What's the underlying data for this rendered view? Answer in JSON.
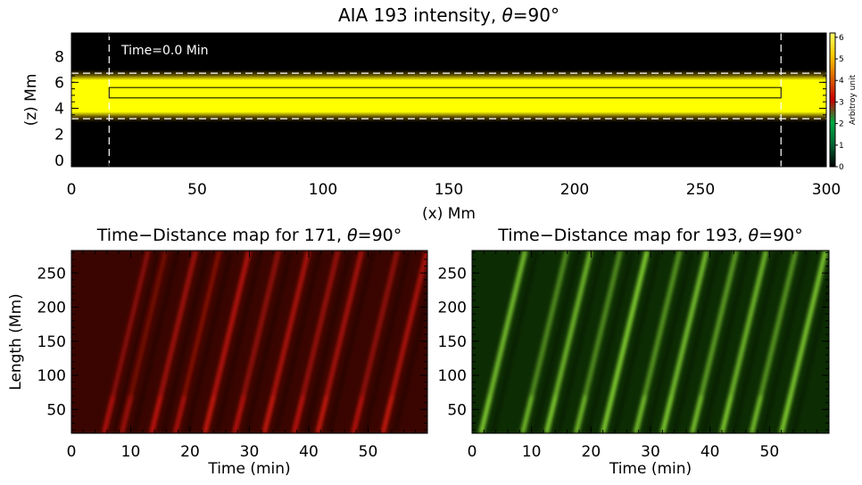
{
  "chart_data": [
    {
      "type": "heatmap",
      "title_prefix": "AIA 193 intensity, ",
      "title_theta": "θ",
      "title_value": "=90°",
      "xlabel": "(x) Mm",
      "ylabel": "(z) Mm",
      "xlim": [
        0,
        300
      ],
      "ylim": [
        -0.5,
        9.8
      ],
      "xticks": [
        0,
        50,
        100,
        150,
        200,
        250,
        300
      ],
      "yticks": [
        0,
        2,
        4,
        6,
        8
      ],
      "annotation": "Time=0.0 Min",
      "colorbar": {
        "label": "Arbitroy unit",
        "ticks": [
          0,
          1,
          2,
          3,
          4,
          5,
          6
        ],
        "range": [
          0,
          6.2
        ],
        "colors": [
          "#000000",
          "#006633",
          "#00aa44",
          "#cc0000",
          "#dd6600",
          "#ffcc00",
          "#ffff66"
        ]
      },
      "band": {
        "z_range": [
          3.2,
          6.7
        ],
        "core_z": [
          3.9,
          6.0
        ],
        "color": "#ffff00"
      },
      "dashed_lines": {
        "z": [
          3.2,
          6.7
        ],
        "x": [
          15,
          282
        ]
      },
      "box": {
        "x": [
          15,
          282
        ],
        "z": [
          4.8,
          5.6
        ]
      }
    },
    {
      "type": "heatmap",
      "title_prefix": "Time−Distance map for 171, ",
      "title_theta": "θ",
      "title_value": "=90°",
      "xlabel": "Time (min)",
      "ylabel": "Length (Mm)",
      "xlim": [
        0,
        60
      ],
      "ylim": [
        15,
        283
      ],
      "xticks": [
        0,
        10,
        20,
        30,
        40,
        50
      ],
      "yticks": [
        50,
        100,
        150,
        200,
        250
      ],
      "background": "#3a0500",
      "ridge_color": "#d81a0c",
      "ridges": [
        {
          "t0": 5.5,
          "strength": 0.55
        },
        {
          "t0": 8.5,
          "strength": 0.4
        },
        {
          "t0": 13.5,
          "strength": 0.7
        },
        {
          "t0": 17.5,
          "strength": 0.5
        },
        {
          "t0": 22.5,
          "strength": 0.85
        },
        {
          "t0": 27.5,
          "strength": 0.6
        },
        {
          "t0": 32.5,
          "strength": 0.8
        },
        {
          "t0": 37.5,
          "strength": 0.65
        },
        {
          "t0": 41.5,
          "strength": 0.75
        },
        {
          "t0": 47.5,
          "strength": 0.6
        },
        {
          "t0": 52.5,
          "strength": 0.8
        }
      ],
      "propagation_speed_mm_per_min": 36
    },
    {
      "type": "heatmap",
      "title_prefix": "Time−Distance map for 193, ",
      "title_theta": "θ",
      "title_value": "=90°",
      "xlabel": "Time (min)",
      "ylabel": "",
      "xlim": [
        0,
        60
      ],
      "ylim": [
        15,
        283
      ],
      "xticks": [
        0,
        10,
        20,
        30,
        40,
        50
      ],
      "yticks": [
        50,
        100,
        150,
        200,
        250
      ],
      "background": "#0c2c03",
      "ridge_color": "#8fe036",
      "ridges": [
        {
          "t0": 1.5,
          "strength": 0.9
        },
        {
          "t0": 8.5,
          "strength": 0.6
        },
        {
          "t0": 12.5,
          "strength": 0.85
        },
        {
          "t0": 17.5,
          "strength": 0.6
        },
        {
          "t0": 22.0,
          "strength": 1.0
        },
        {
          "t0": 27.5,
          "strength": 0.65
        },
        {
          "t0": 32.0,
          "strength": 0.9
        },
        {
          "t0": 37.0,
          "strength": 0.7
        },
        {
          "t0": 42.0,
          "strength": 0.85
        },
        {
          "t0": 47.0,
          "strength": 0.65
        },
        {
          "t0": 52.0,
          "strength": 0.95
        }
      ],
      "propagation_speed_mm_per_min": 36
    }
  ]
}
